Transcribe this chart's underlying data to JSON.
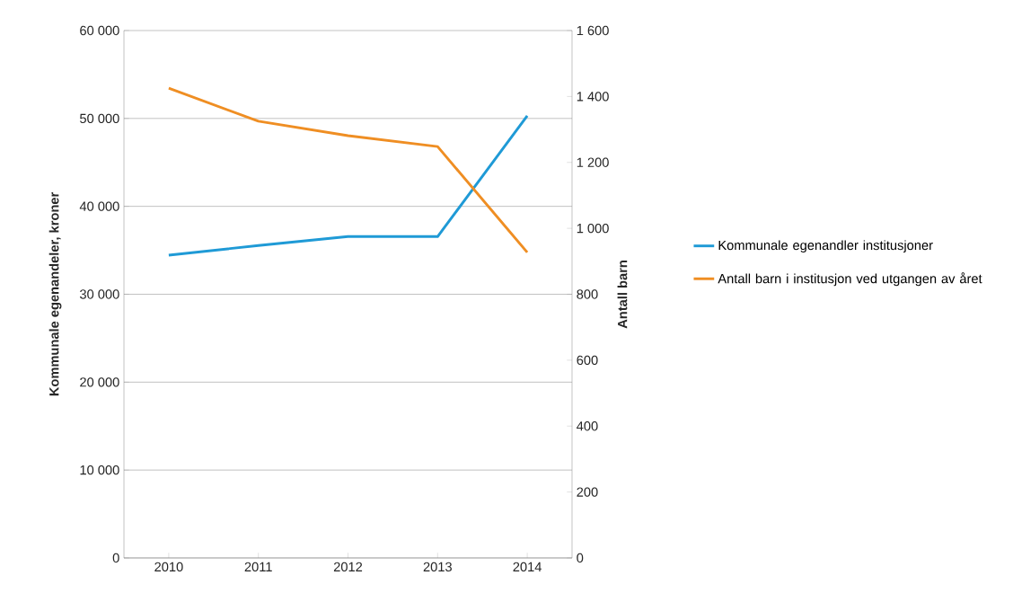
{
  "chart_data": {
    "type": "line",
    "categories": [
      "2010",
      "2011",
      "2012",
      "2013",
      "2014"
    ],
    "ylabel": "Kommunale egenandeler, kroner",
    "y2label": "Antall barn",
    "series": [
      {
        "name": "Kommunale egenandler institusjoner",
        "color": "#1f9ad6",
        "values": [
          34450,
          35540,
          36560,
          36560,
          50290
        ]
      },
      {
        "name": "Antall barn i institusjon ved utgangen av året",
        "color": "#ef8e23",
        "axis": "y2",
        "values": [
          1425,
          1325,
          1281,
          1248,
          927
        ]
      }
    ],
    "ylim": [
      0,
      60000
    ],
    "yticks": [
      0,
      {
        "value": 10000,
        "label": "10 000"
      },
      {
        "value": 20000,
        "label": "20 000"
      },
      {
        "value": 30000,
        "label": "30 000"
      },
      {
        "value": 40000,
        "label": "40 000"
      },
      {
        "value": 50000,
        "label": "50 000"
      },
      {
        "value": 60000,
        "label": "60 000"
      }
    ],
    "y2lim": [
      0,
      1600
    ],
    "y2ticks": [
      0,
      200,
      400,
      600,
      800,
      {
        "value": 1000,
        "label": "1 000"
      },
      {
        "value": 1200,
        "label": "1 200"
      },
      {
        "value": 1400,
        "label": "1 400"
      },
      {
        "value": 1600,
        "label": "1 600"
      }
    ],
    "grid": "y",
    "legend": "right",
    "marker": "none",
    "line_style": "solid"
  }
}
